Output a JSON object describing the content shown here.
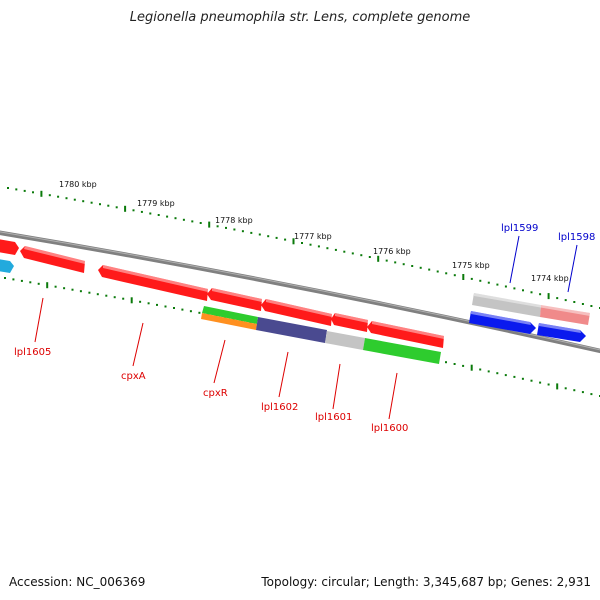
{
  "title": "Legionella pneumophila str. Lens, complete genome",
  "footer": {
    "accession": "Accession: NC_006369",
    "topology": "Topology: circular; Length: 3,345,687 bp; Genes: 2,931"
  },
  "ticks": [
    {
      "label": "1780 kbp"
    },
    {
      "label": "1779 kbp"
    },
    {
      "label": "1778 kbp"
    },
    {
      "label": "1777 kbp"
    },
    {
      "label": "1776 kbp"
    },
    {
      "label": "1775 kbp"
    },
    {
      "label": "1774 kbp"
    }
  ],
  "gene_labels": [
    {
      "name": "lpl1605",
      "text": "lpl1605",
      "color": "#dd0000"
    },
    {
      "name": "cpxa",
      "text": "cpxA",
      "color": "#dd0000"
    },
    {
      "name": "cpxr",
      "text": "cpxR",
      "color": "#dd0000"
    },
    {
      "name": "lpl1602",
      "text": "lpl1602",
      "color": "#dd0000"
    },
    {
      "name": "lpl1601",
      "text": "lpl1601",
      "color": "#dd0000"
    },
    {
      "name": "lpl1600",
      "text": "lpl1600",
      "color": "#dd0000"
    },
    {
      "name": "lpl1599",
      "text": "lpl1599",
      "color": "#0000cc"
    },
    {
      "name": "lpl1598",
      "text": "lpl1598",
      "color": "#0000cc"
    }
  ],
  "colors": {
    "backbone": "#808080",
    "gene_red": "#ff1a1a",
    "gene_blue": "#0a1aee",
    "gene_green": "#2ecc2e",
    "gene_purple": "#4a4a90",
    "gene_gray": "#c4c4c4",
    "gene_pink": "#f08a8a",
    "gene_orange": "#ff9020",
    "gene_cyan": "#22aadd",
    "tick_green": "#0a7a0a"
  }
}
